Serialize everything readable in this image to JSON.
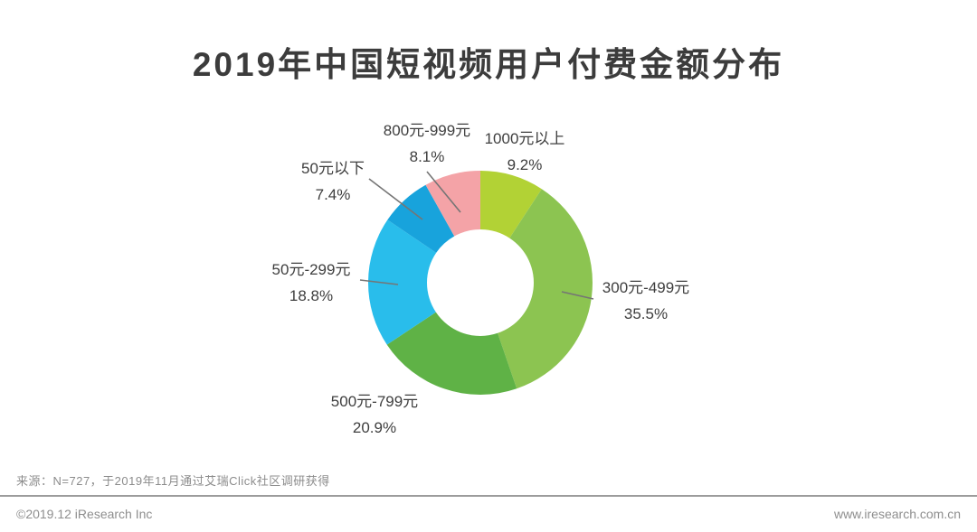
{
  "title": "2019年中国短视频用户付费金额分布",
  "chart_data": {
    "type": "pie",
    "subtype": "donut",
    "title": "2019年中国短视频用户付费金额分布",
    "unit": "%",
    "start_angle_deg": 0,
    "direction": "clockwise",
    "legend_position": "none",
    "segments": [
      {
        "label": "1000元以上",
        "value": 9.2,
        "pct_label": "9.2%",
        "color": "#b2d235"
      },
      {
        "label": "300元-499元",
        "value": 35.5,
        "pct_label": "35.5%",
        "color": "#8cc451"
      },
      {
        "label": "500元-799元",
        "value": 20.9,
        "pct_label": "20.9%",
        "color": "#5fb246"
      },
      {
        "label": "50元-299元",
        "value": 18.8,
        "pct_label": "18.8%",
        "color": "#29bdeb"
      },
      {
        "label": "50元以下",
        "value": 7.4,
        "pct_label": "7.4%",
        "color": "#18a3dc"
      },
      {
        "label": "800元-999元",
        "value": 8.1,
        "pct_label": "8.1%",
        "color": "#f4a3a7"
      }
    ]
  },
  "source_note": "来源：N=727，于2019年11月通过艾瑞Click社区调研获得",
  "footer": {
    "copyright": "©2019.12 iResearch Inc",
    "website": "www.iresearch.com.cn"
  }
}
